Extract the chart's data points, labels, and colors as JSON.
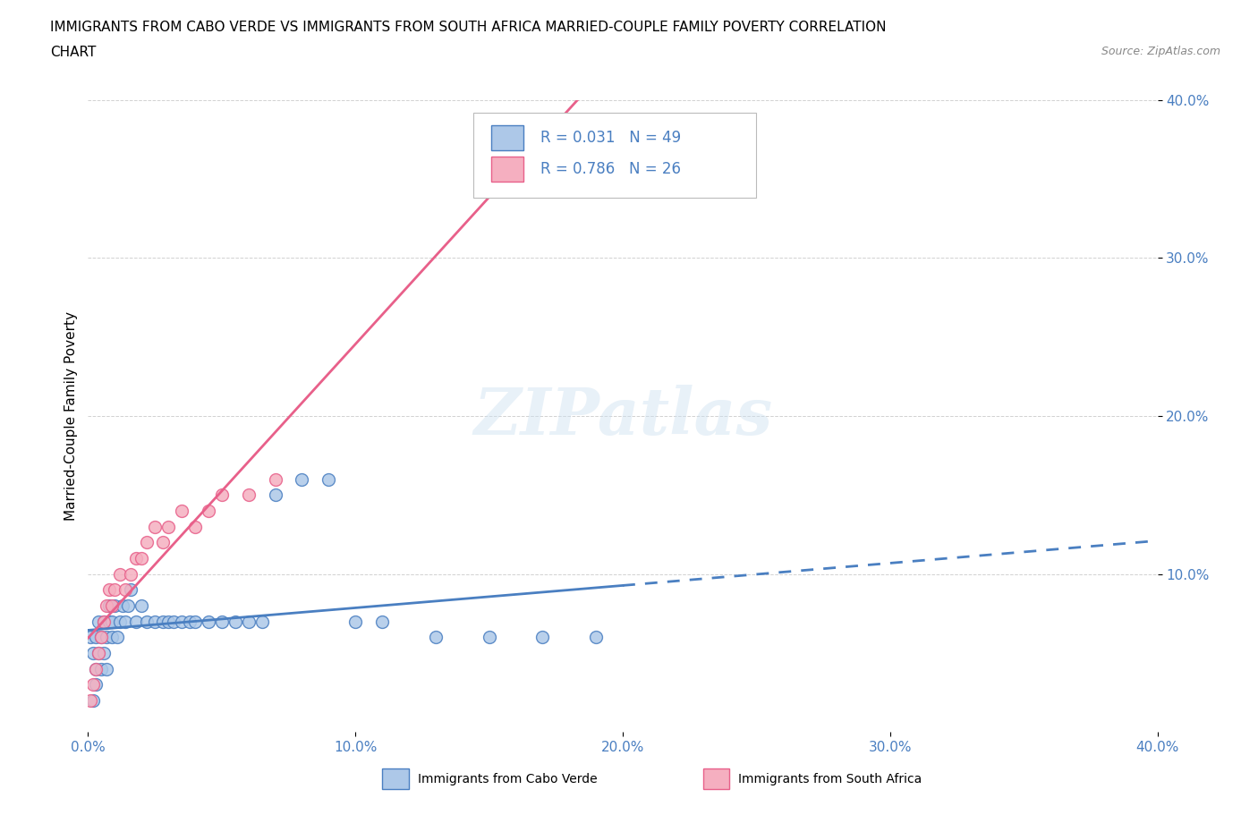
{
  "title_line1": "IMMIGRANTS FROM CABO VERDE VS IMMIGRANTS FROM SOUTH AFRICA MARRIED-COUPLE FAMILY POVERTY CORRELATION",
  "title_line2": "CHART",
  "source": "Source: ZipAtlas.com",
  "ylabel": "Married-Couple Family Poverty",
  "xlim": [
    0.0,
    0.4
  ],
  "ylim": [
    0.0,
    0.4
  ],
  "xtick_labels": [
    "0.0%",
    "10.0%",
    "20.0%",
    "30.0%",
    "40.0%"
  ],
  "xtick_values": [
    0.0,
    0.1,
    0.2,
    0.3,
    0.4
  ],
  "ytick_labels": [
    "10.0%",
    "20.0%",
    "30.0%",
    "40.0%"
  ],
  "ytick_values": [
    0.1,
    0.2,
    0.3,
    0.4
  ],
  "color_cabo_verde": "#adc8e8",
  "color_south_africa": "#f5afc0",
  "line_color_cabo_verde": "#4a7fc1",
  "line_color_south_africa": "#e8608a",
  "R_cabo_verde": 0.031,
  "N_cabo_verde": 49,
  "R_south_africa": 0.786,
  "N_south_africa": 26,
  "watermark": "ZIPatlas",
  "legend_label_1": "Immigrants from Cabo Verde",
  "legend_label_2": "Immigrants from South Africa",
  "cabo_verde_x": [
    0.001,
    0.002,
    0.003,
    0.003,
    0.004,
    0.004,
    0.005,
    0.005,
    0.006,
    0.006,
    0.007,
    0.007,
    0.008,
    0.008,
    0.009,
    0.009,
    0.01,
    0.011,
    0.012,
    0.013,
    0.014,
    0.015,
    0.016,
    0.018,
    0.02,
    0.022,
    0.025,
    0.028,
    0.03,
    0.032,
    0.035,
    0.038,
    0.04,
    0.045,
    0.05,
    0.055,
    0.06,
    0.065,
    0.07,
    0.08,
    0.09,
    0.1,
    0.11,
    0.13,
    0.15,
    0.17,
    0.19,
    0.003,
    0.002
  ],
  "cabo_verde_y": [
    0.06,
    0.05,
    0.04,
    0.06,
    0.05,
    0.07,
    0.04,
    0.06,
    0.05,
    0.07,
    0.04,
    0.06,
    0.07,
    0.08,
    0.06,
    0.07,
    0.08,
    0.06,
    0.07,
    0.08,
    0.07,
    0.08,
    0.09,
    0.07,
    0.08,
    0.07,
    0.07,
    0.07,
    0.07,
    0.07,
    0.07,
    0.07,
    0.07,
    0.07,
    0.07,
    0.07,
    0.07,
    0.07,
    0.15,
    0.16,
    0.16,
    0.07,
    0.07,
    0.06,
    0.06,
    0.06,
    0.06,
    0.03,
    0.02
  ],
  "south_africa_x": [
    0.001,
    0.002,
    0.003,
    0.004,
    0.005,
    0.006,
    0.007,
    0.008,
    0.009,
    0.01,
    0.012,
    0.014,
    0.016,
    0.018,
    0.02,
    0.022,
    0.025,
    0.028,
    0.03,
    0.035,
    0.04,
    0.045,
    0.05,
    0.06,
    0.07,
    0.16
  ],
  "south_africa_y": [
    0.02,
    0.03,
    0.04,
    0.05,
    0.06,
    0.07,
    0.08,
    0.09,
    0.08,
    0.09,
    0.1,
    0.09,
    0.1,
    0.11,
    0.11,
    0.12,
    0.13,
    0.12,
    0.13,
    0.14,
    0.13,
    0.14,
    0.15,
    0.15,
    0.16,
    0.36
  ],
  "cv_line_solid_end": 0.2,
  "cv_line_dash_start": 0.2,
  "cv_line_end": 0.4
}
